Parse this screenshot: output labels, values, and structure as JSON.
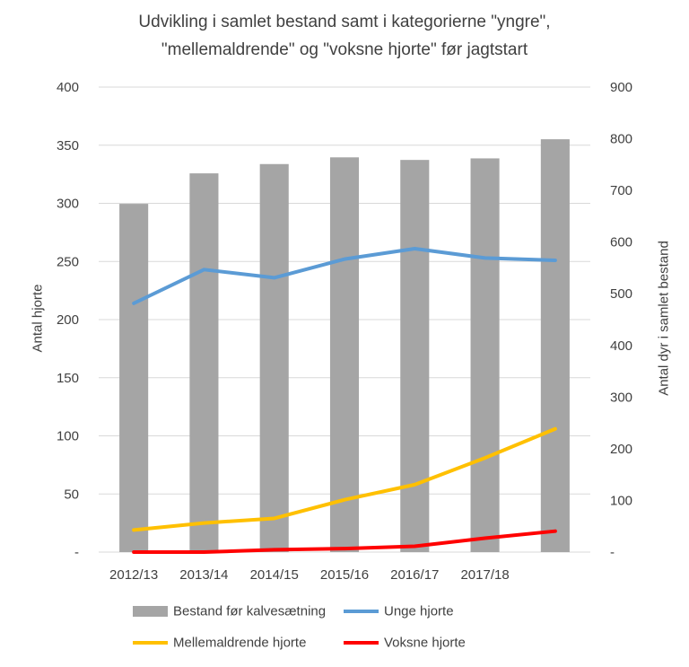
{
  "chart_data": {
    "type": "bar",
    "title_line1": "Udvikling i samlet bestand samt i kategorierne \"yngre\",",
    "title_line2": "\"mellemaldrende\" og \"voksne hjorte\" før jagtstart",
    "ylabel_left": "Antal hjorte",
    "ylabel_right": "Antal dyr i samlet bestand",
    "categories": [
      "2012/13",
      "2013/14",
      "2014/15",
      "2015/16",
      "2016/17",
      "2017/18",
      ""
    ],
    "x_tick_labels": [
      "2012/13",
      "2013/14",
      "2014/15",
      "2015/16",
      "2016/17",
      "2017/18"
    ],
    "ylim_left": [
      0,
      400
    ],
    "yticks_left": [
      "-",
      "50",
      "100",
      "150",
      "200",
      "250",
      "300",
      "350",
      "400"
    ],
    "ylim_right": [
      0,
      900
    ],
    "yticks_right": [
      "-",
      "100",
      "200",
      "300",
      "400",
      "500",
      "600",
      "700",
      "800",
      "900"
    ],
    "grid": true,
    "legend_position": "bottom",
    "bar_series": {
      "name": "Bestand før kalvesætning",
      "axis": "right",
      "color": "#a5a5a5",
      "values": [
        674,
        733,
        751,
        764,
        759,
        762,
        799
      ]
    },
    "line_series": [
      {
        "name": "Unge hjorte",
        "axis": "left",
        "color": "#5b9bd5",
        "values": [
          214,
          243,
          236,
          252,
          261,
          253,
          251
        ]
      },
      {
        "name": "Mellemaldrende hjorte",
        "axis": "left",
        "color": "#ffc000",
        "values": [
          19,
          25,
          29,
          45,
          58,
          81,
          106
        ]
      },
      {
        "name": "Voksne hjorte",
        "axis": "left",
        "color": "#ff0000",
        "values": [
          0,
          0,
          2,
          3,
          5,
          12,
          18
        ]
      }
    ]
  }
}
